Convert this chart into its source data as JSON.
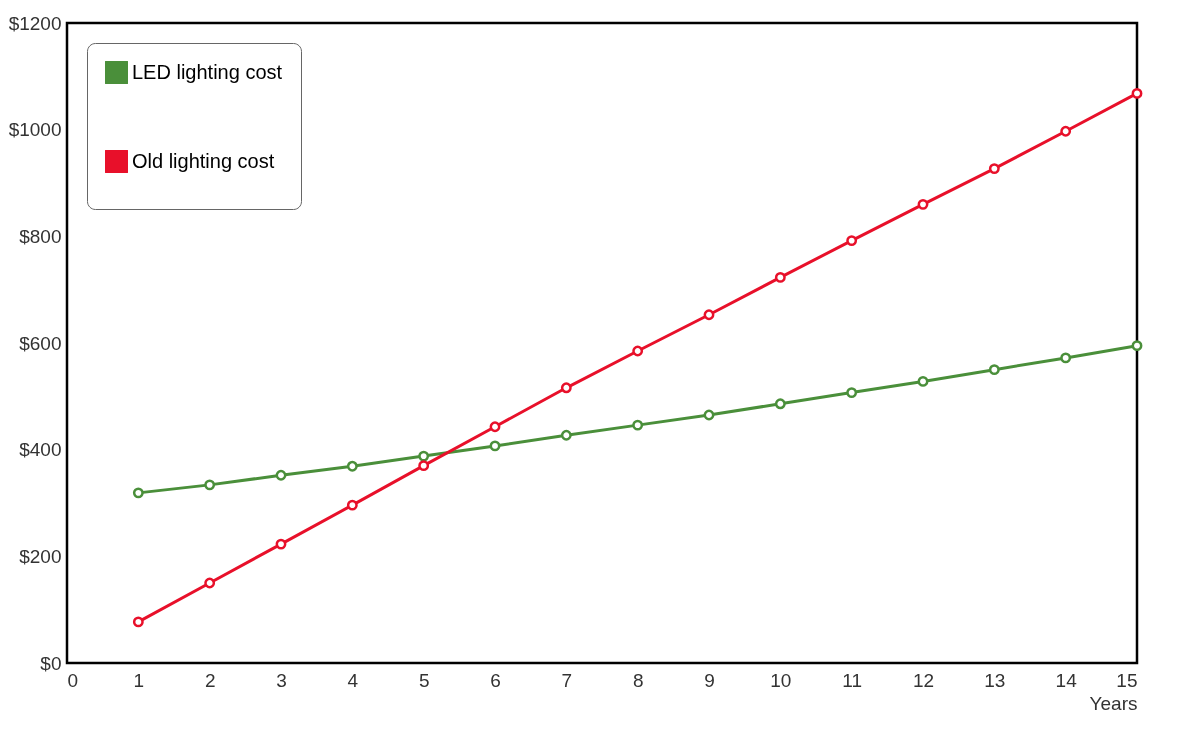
{
  "chart_data": {
    "type": "line",
    "xlabel": "Years",
    "x": [
      1,
      2,
      3,
      4,
      5,
      6,
      7,
      8,
      9,
      10,
      11,
      12,
      13,
      14,
      15
    ],
    "series": [
      {
        "name": "LED lighting cost",
        "color": "#4a8f3a",
        "values": [
          319,
          334,
          352,
          369,
          388,
          407,
          427,
          446,
          465,
          486,
          507,
          528,
          550,
          572,
          595
        ]
      },
      {
        "name": "Old lighting cost",
        "color": "#e8102a",
        "values": [
          77,
          150,
          223,
          296,
          370,
          443,
          516,
          585,
          653,
          723,
          792,
          860,
          927,
          997,
          1068
        ]
      }
    ],
    "xlim": [
      0,
      15
    ],
    "xticks": [
      0,
      1,
      2,
      3,
      4,
      5,
      6,
      7,
      8,
      9,
      10,
      11,
      12,
      13,
      14,
      15
    ],
    "ylim": [
      0,
      1200
    ],
    "yticks": [
      {
        "value": 0,
        "label": "$0"
      },
      {
        "value": 200,
        "label": "$200"
      },
      {
        "value": 400,
        "label": "$400"
      },
      {
        "value": 600,
        "label": "$600"
      },
      {
        "value": 800,
        "label": "$800"
      },
      {
        "value": 1000,
        "label": "$1000"
      },
      {
        "value": 1200,
        "label": "$1200"
      }
    ],
    "grid": false,
    "legend": "top left",
    "marker": "circle",
    "line_style": "solid"
  }
}
